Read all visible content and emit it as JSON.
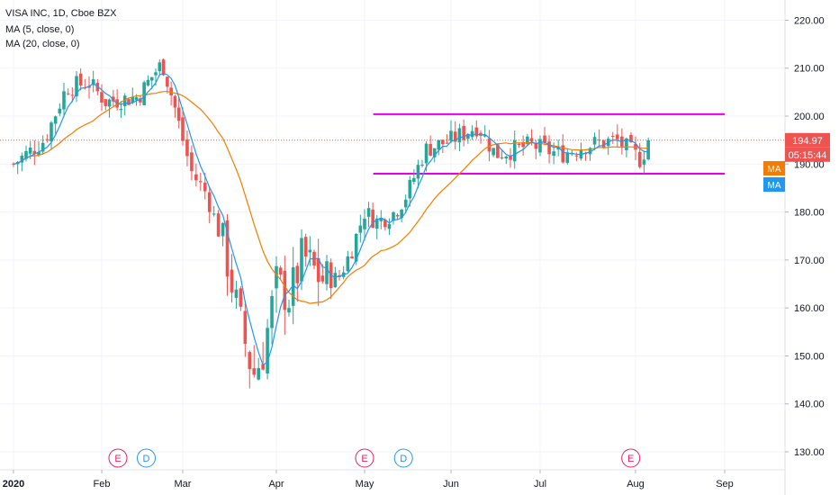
{
  "header": {
    "symbol_line": "VISA INC, 1D, Cboe BZX",
    "ma5_line": "MA (5, close, 0)",
    "ma20_line": "MA (20, close, 0)"
  },
  "price_badges": {
    "last_price": "194.97",
    "countdown": "05:15:44",
    "ma20_badge": "MA",
    "ma5_badge": "MA"
  },
  "markers": [
    {
      "label": "E",
      "month_index": 1.2,
      "kind": "earnings"
    },
    {
      "label": "D",
      "month_index": 1.55,
      "kind": "dividend"
    },
    {
      "label": "E",
      "month_index": 4.0,
      "kind": "earnings"
    },
    {
      "label": "D",
      "month_index": 4.45,
      "kind": "dividend"
    },
    {
      "label": "E",
      "month_index": 6.95,
      "kind": "earnings"
    }
  ],
  "colors": {
    "up": "#26a69a",
    "down": "#ef5350",
    "ma5": "#2196f3",
    "ma20": "#f57c00",
    "channel": "#e600e6",
    "last_price_line": "#ef5350",
    "grid": "#f0f3fa",
    "earnings": "#e91e63",
    "dividend": "#2196f3"
  },
  "chart_data": {
    "type": "candlestick",
    "symbol": "VISA INC",
    "interval": "1D",
    "exchange": "Cboe BZX",
    "x_tick_labels": [
      "2020",
      "Feb",
      "Mar",
      "Apr",
      "May",
      "Jun",
      "Jul",
      "Aug",
      "Sep"
    ],
    "y_tick_labels": [
      "130.00",
      "140.00",
      "150.00",
      "160.00",
      "170.00",
      "180.00",
      "190.00",
      "200.00",
      "210.00",
      "220.00"
    ],
    "ylim": [
      126,
      226
    ],
    "channel_lines": [
      {
        "value": 200.4,
        "from_month": 4.1,
        "to_month": 8.0
      },
      {
        "value": 188.0,
        "from_month": 4.1,
        "to_month": 8.0
      }
    ],
    "last_price": 194.97,
    "waypoints": [
      {
        "m": 0.0,
        "p": 190
      },
      {
        "m": 0.35,
        "p": 195
      },
      {
        "m": 0.6,
        "p": 206
      },
      {
        "m": 0.85,
        "p": 207
      },
      {
        "m": 1.05,
        "p": 203
      },
      {
        "m": 1.45,
        "p": 204
      },
      {
        "m": 1.65,
        "p": 209
      },
      {
        "m": 1.75,
        "p": 211
      },
      {
        "m": 1.9,
        "p": 202
      },
      {
        "m": 2.1,
        "p": 188
      },
      {
        "m": 2.25,
        "p": 184
      },
      {
        "m": 2.45,
        "p": 172
      },
      {
        "m": 2.6,
        "p": 158
      },
      {
        "m": 2.75,
        "p": 146
      },
      {
        "m": 2.85,
        "p": 150
      },
      {
        "m": 3.0,
        "p": 165
      },
      {
        "m": 3.15,
        "p": 162
      },
      {
        "m": 3.3,
        "p": 171
      },
      {
        "m": 3.5,
        "p": 166
      },
      {
        "m": 3.7,
        "p": 166
      },
      {
        "m": 3.85,
        "p": 172
      },
      {
        "m": 4.0,
        "p": 180
      },
      {
        "m": 4.15,
        "p": 178
      },
      {
        "m": 4.35,
        "p": 180
      },
      {
        "m": 4.5,
        "p": 184
      },
      {
        "m": 4.7,
        "p": 193
      },
      {
        "m": 5.0,
        "p": 195
      },
      {
        "m": 5.3,
        "p": 198
      },
      {
        "m": 5.5,
        "p": 192
      },
      {
        "m": 5.9,
        "p": 194
      },
      {
        "m": 6.2,
        "p": 192
      },
      {
        "m": 6.5,
        "p": 194
      },
      {
        "m": 6.8,
        "p": 195
      },
      {
        "m": 7.05,
        "p": 191
      },
      {
        "m": 7.17,
        "p": 194.97
      }
    ]
  }
}
